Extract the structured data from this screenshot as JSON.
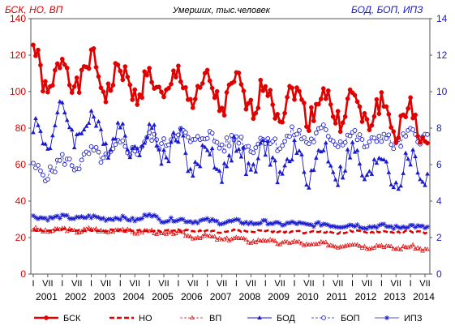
{
  "chart_data": {
    "type": "line",
    "title": "Умерших, тыс.человек",
    "left_axis_title": "БСК, НО, ВП",
    "right_axis_title": "БОД, БОП, ИПЗ",
    "ylim_left": [
      0,
      140
    ],
    "yticks_left": [
      "0",
      "20",
      "40",
      "60",
      "80",
      "100",
      "120",
      "140"
    ],
    "ylim_right": [
      0,
      14
    ],
    "yticks_right": [
      "0",
      "2",
      "4",
      "6",
      "8",
      "10",
      "12",
      "14"
    ],
    "month_tick_labels": [
      "I",
      "VII",
      "I",
      "VII",
      "I",
      "VII",
      "I",
      "VII",
      "I",
      "VII",
      "I",
      "VII",
      "I",
      "VII",
      "I",
      "VII",
      "I",
      "VII",
      "I",
      "VII",
      "I",
      "VII",
      "I",
      "VII",
      "I",
      "VII",
      "I",
      "VII"
    ],
    "year_labels": [
      "2001",
      "2002",
      "2003",
      "2004",
      "2005",
      "2006",
      "2007",
      "2008",
      "2009",
      "2010",
      "2011",
      "2012",
      "2013",
      "2014"
    ],
    "x_start": "2001-01",
    "x_end": "2014-07",
    "grid": false,
    "legend_position": "bottom",
    "colors": {
      "red": "#e00000",
      "blue": "#1a1acc"
    },
    "series": [
      {
        "name": "БСК",
        "axis": "left",
        "style": "solid-circle",
        "anchors": [
          [
            0,
            118
          ],
          [
            6,
            104
          ],
          [
            12,
            112
          ],
          [
            18,
            108
          ],
          [
            24,
            112
          ],
          [
            30,
            106
          ],
          [
            36,
            106
          ],
          [
            42,
            104
          ],
          [
            48,
            102
          ],
          [
            54,
            102
          ],
          [
            60,
            104
          ],
          [
            66,
            100
          ],
          [
            72,
            100
          ],
          [
            78,
            97
          ],
          [
            84,
            99
          ],
          [
            90,
            96
          ],
          [
            96,
            98
          ],
          [
            102,
            94
          ],
          [
            108,
            95
          ],
          [
            114,
            92
          ],
          [
            120,
            94
          ],
          [
            126,
            90
          ],
          [
            132,
            91
          ],
          [
            138,
            88
          ],
          [
            144,
            88
          ],
          [
            150,
            84
          ],
          [
            156,
            84
          ],
          [
            162,
            78
          ],
          [
            163,
            76
          ]
        ],
        "amp": 11,
        "seasonal": 7,
        "seed": 1
      },
      {
        "name": "НО",
        "axis": "left",
        "style": "dashed",
        "anchors": [
          [
            0,
            24
          ],
          [
            24,
            24
          ],
          [
            48,
            24
          ],
          [
            72,
            23.5
          ],
          [
            96,
            23.5
          ],
          [
            120,
            23
          ],
          [
            144,
            23
          ],
          [
            163,
            23
          ]
        ],
        "amp": 1.2,
        "seasonal": 0.3,
        "seed": 2
      },
      {
        "name": "ВП",
        "axis": "left",
        "style": "thin-triangle-open",
        "anchors": [
          [
            0,
            24
          ],
          [
            12,
            24
          ],
          [
            24,
            24
          ],
          [
            36,
            24
          ],
          [
            48,
            23
          ],
          [
            60,
            22
          ],
          [
            72,
            20
          ],
          [
            84,
            19
          ],
          [
            96,
            18
          ],
          [
            108,
            17
          ],
          [
            120,
            16
          ],
          [
            132,
            16
          ],
          [
            144,
            15
          ],
          [
            163,
            14
          ]
        ],
        "amp": 1.6,
        "seasonal": 0.8,
        "seed": 3
      },
      {
        "name": "БОД",
        "axis": "right",
        "style": "solid-triangle",
        "anchors": [
          [
            0,
            7.5
          ],
          [
            12,
            8.3
          ],
          [
            24,
            8.0
          ],
          [
            36,
            7.4
          ],
          [
            48,
            7.3
          ],
          [
            60,
            7.0
          ],
          [
            66,
            6.3
          ],
          [
            72,
            6.2
          ],
          [
            84,
            6.4
          ],
          [
            96,
            6.2
          ],
          [
            108,
            6.0
          ],
          [
            120,
            6.2
          ],
          [
            132,
            6.0
          ],
          [
            144,
            5.8
          ],
          [
            156,
            5.6
          ],
          [
            163,
            6.0
          ]
        ],
        "amp": 1.0,
        "seasonal": 0.8,
        "seed": 4
      },
      {
        "name": "БОП",
        "axis": "right",
        "style": "dashed-circle-open",
        "anchors": [
          [
            0,
            5.5
          ],
          [
            12,
            6.0
          ],
          [
            24,
            6.4
          ],
          [
            36,
            6.8
          ],
          [
            48,
            7.2
          ],
          [
            60,
            7.6
          ],
          [
            72,
            7.4
          ],
          [
            84,
            7.2
          ],
          [
            96,
            7.2
          ],
          [
            108,
            7.5
          ],
          [
            120,
            7.6
          ],
          [
            132,
            7.4
          ],
          [
            144,
            7.3
          ],
          [
            156,
            7.4
          ],
          [
            163,
            7.8
          ]
        ],
        "amp": 0.6,
        "seasonal": 0.3,
        "seed": 5
      },
      {
        "name": "ИПЗ",
        "axis": "right",
        "style": "thin-star",
        "anchors": [
          [
            0,
            3.1
          ],
          [
            24,
            3.1
          ],
          [
            44,
            3.0
          ],
          [
            48,
            3.3
          ],
          [
            52,
            3.0
          ],
          [
            72,
            2.9
          ],
          [
            96,
            2.8
          ],
          [
            120,
            2.7
          ],
          [
            144,
            2.6
          ],
          [
            163,
            2.6
          ]
        ],
        "amp": 0.18,
        "seasonal": 0.05,
        "seed": 6
      }
    ]
  }
}
